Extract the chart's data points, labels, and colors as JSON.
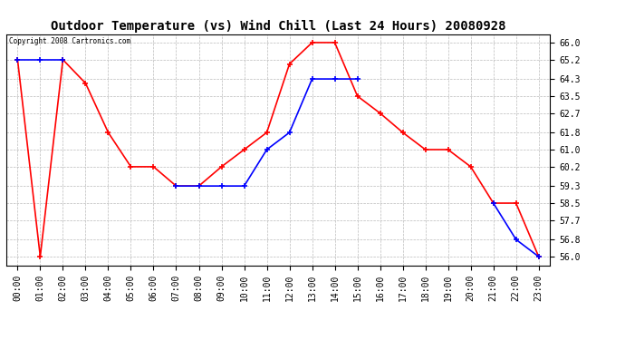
{
  "title": "Outdoor Temperature (vs) Wind Chill (Last 24 Hours) 20080928",
  "copyright_text": "Copyright 2008 Cartronics.com",
  "hours": [
    0,
    1,
    2,
    3,
    4,
    5,
    6,
    7,
    8,
    9,
    10,
    11,
    12,
    13,
    14,
    15,
    16,
    17,
    18,
    19,
    20,
    21,
    22,
    23
  ],
  "x_labels": [
    "00:00",
    "01:00",
    "02:00",
    "03:00",
    "04:00",
    "05:00",
    "06:00",
    "07:00",
    "08:00",
    "09:00",
    "10:00",
    "11:00",
    "12:00",
    "13:00",
    "14:00",
    "15:00",
    "16:00",
    "17:00",
    "18:00",
    "19:00",
    "20:00",
    "21:00",
    "22:00",
    "23:00"
  ],
  "red_temp": [
    65.2,
    56.0,
    65.2,
    64.1,
    61.8,
    60.2,
    60.2,
    59.3,
    59.3,
    60.2,
    61.0,
    61.8,
    65.0,
    66.0,
    66.0,
    63.5,
    62.7,
    61.8,
    61.0,
    61.0,
    60.2,
    58.5,
    58.5,
    56.0
  ],
  "blue_wc": [
    65.2,
    65.2,
    65.2,
    null,
    null,
    null,
    null,
    59.3,
    59.3,
    59.3,
    59.3,
    61.0,
    61.8,
    64.3,
    64.3,
    64.3,
    null,
    null,
    null,
    null,
    null,
    58.5,
    56.8,
    56.0
  ],
  "ylim": [
    55.6,
    66.4
  ],
  "yticks": [
    56.0,
    56.8,
    57.7,
    58.5,
    59.3,
    60.2,
    61.0,
    61.8,
    62.7,
    63.5,
    64.3,
    65.2,
    66.0
  ],
  "red_color": "#ff0000",
  "blue_color": "#0000ff",
  "bg_color": "#ffffff",
  "grid_color": "#bbbbbb",
  "title_fontsize": 10,
  "tick_fontsize": 7,
  "copyright_fontsize": 5.5
}
